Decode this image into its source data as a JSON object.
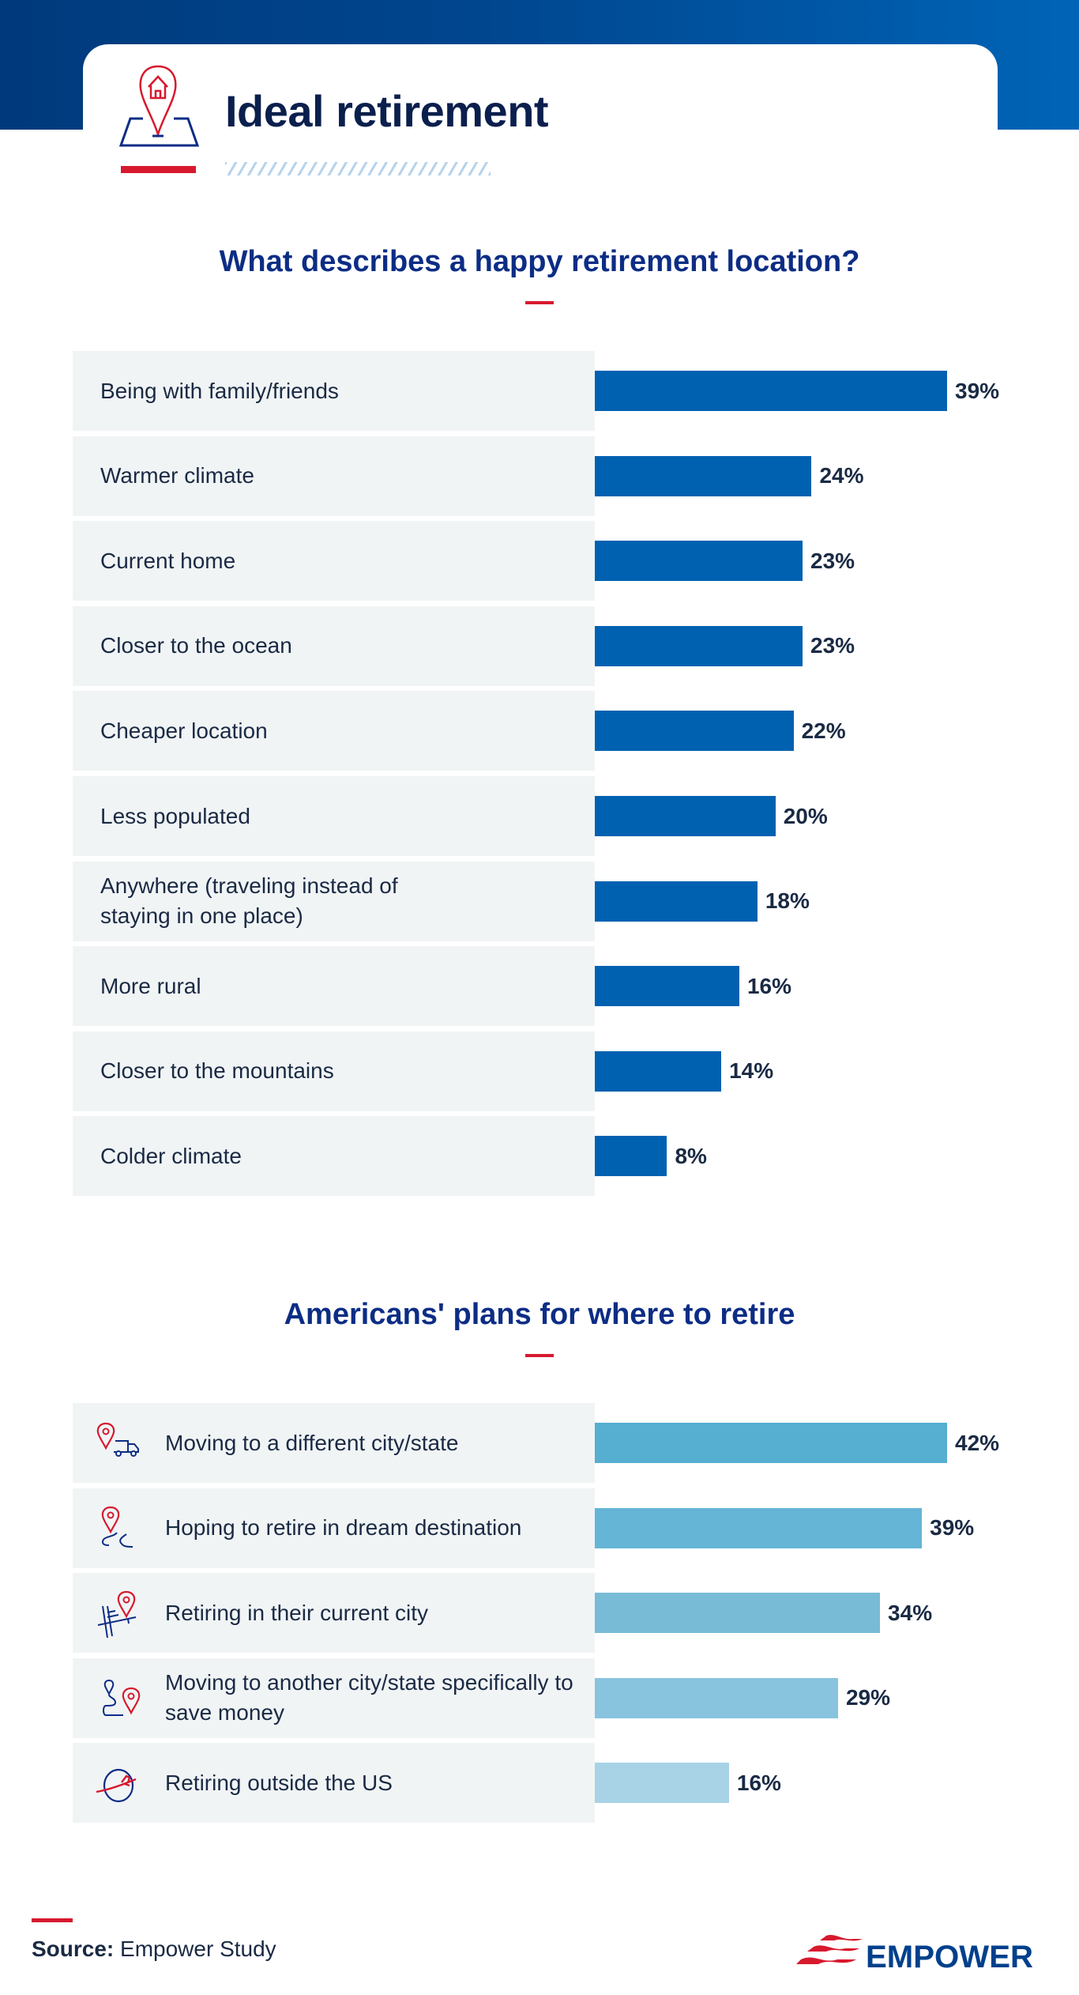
{
  "header": {
    "title": "Ideal retirement",
    "icon": "map-pin-house-icon"
  },
  "colors": {
    "brand_navy": "#0b1f4d",
    "accent_red": "#d7192e",
    "bar_blue": "#0061b1",
    "panel_bg": "#f1f4f5"
  },
  "chart_data": [
    {
      "type": "bar",
      "orientation": "horizontal",
      "title": "What describes a happy retirement location?",
      "categories": [
        "Being with family/friends",
        "Warmer climate",
        "Current home",
        "Closer to the ocean",
        "Cheaper location",
        "Less populated",
        "Anywhere (traveling instead of staying in one place)",
        "More rural",
        "Closer to the mountains",
        "Colder climate"
      ],
      "values": [
        39,
        24,
        23,
        23,
        22,
        20,
        18,
        16,
        14,
        8
      ],
      "value_labels": [
        "39%",
        "24%",
        "23%",
        "23%",
        "22%",
        "20%",
        "18%",
        "16%",
        "14%",
        "8%"
      ],
      "unit": "%",
      "color": "#0061b1"
    },
    {
      "type": "bar",
      "orientation": "horizontal",
      "title": "Americans' plans for where to retire",
      "categories": [
        "Moving to a different city/state",
        "Hoping to retire in dream destination",
        "Retiring in their current city",
        "Moving to another city/state specifically to save money",
        "Retiring outside the US"
      ],
      "values": [
        42,
        39,
        34,
        29,
        16
      ],
      "value_labels": [
        "42%",
        "39%",
        "34%",
        "29%",
        "16%"
      ],
      "unit": "%",
      "colors": [
        "#56aed0",
        "#65b5d6",
        "#77bbd7",
        "#88c4de",
        "#a8d3e6"
      ],
      "icons": [
        "pin-truck-icon",
        "pin-road-icon",
        "pin-streets-icon",
        "pin-route-icon",
        "globe-plane-icon"
      ]
    }
  ],
  "footer": {
    "source_label": "Source:",
    "source_value": "Empower Study",
    "brand": "EMPOWER"
  }
}
